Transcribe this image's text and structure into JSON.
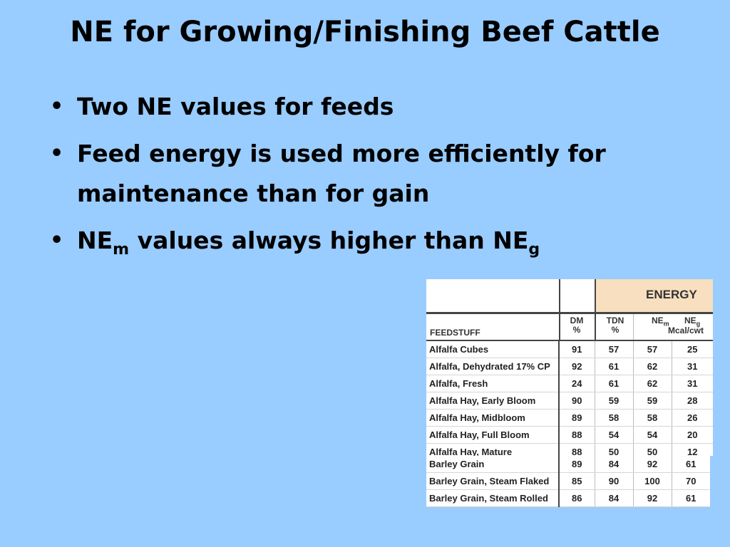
{
  "slide": {
    "title": "NE for Growing/Finishing Beef Cattle",
    "bullets": [
      {
        "text": "Two NE values for feeds"
      },
      {
        "text": "Feed energy is used more efficiently for maintenance than for gain"
      },
      {
        "prefix": "NE",
        "sub1": "m",
        "middle": " values always higher than NE",
        "sub2": "g"
      }
    ]
  },
  "table": {
    "group_header": "ENERGY",
    "columns": {
      "feedstuff": "FEEDSTUFF",
      "dm": "DM",
      "dm_unit": "%",
      "tdn": "TDN",
      "tdn_unit": "%",
      "ne": "NE",
      "nem_sub": "m",
      "neg_sub": "g",
      "ne_unit": "Mcal/cwt"
    },
    "rows_top": [
      {
        "name": "Alfalfa Cubes",
        "dm": "91",
        "tdn": "57",
        "nem": "57",
        "neg": "25"
      },
      {
        "name": "Alfalfa, Dehydrated 17% CP",
        "dm": "92",
        "tdn": "61",
        "nem": "62",
        "neg": "31"
      },
      {
        "name": "Alfalfa, Fresh",
        "dm": "24",
        "tdn": "61",
        "nem": "62",
        "neg": "31"
      },
      {
        "name": "Alfalfa Hay, Early Bloom",
        "dm": "90",
        "tdn": "59",
        "nem": "59",
        "neg": "28"
      },
      {
        "name": "Alfalfa Hay, Midbloom",
        "dm": "89",
        "tdn": "58",
        "nem": "58",
        "neg": "26"
      },
      {
        "name": "Alfalfa Hay, Full Bloom",
        "dm": "88",
        "tdn": "54",
        "nem": "54",
        "neg": "20"
      },
      {
        "name": "Alfalfa Hay, Mature",
        "dm": "88",
        "tdn": "50",
        "nem": "50",
        "neg": "12"
      }
    ],
    "rows_bottom": [
      {
        "name": "Barley Grain",
        "dm": "89",
        "tdn": "84",
        "nem": "92",
        "neg": "61"
      },
      {
        "name": "Barley Grain, Steam Flaked",
        "dm": "85",
        "tdn": "90",
        "nem": "100",
        "neg": "70"
      },
      {
        "name": "Barley Grain, Steam Rolled",
        "dm": "86",
        "tdn": "84",
        "nem": "92",
        "neg": "61"
      }
    ]
  }
}
